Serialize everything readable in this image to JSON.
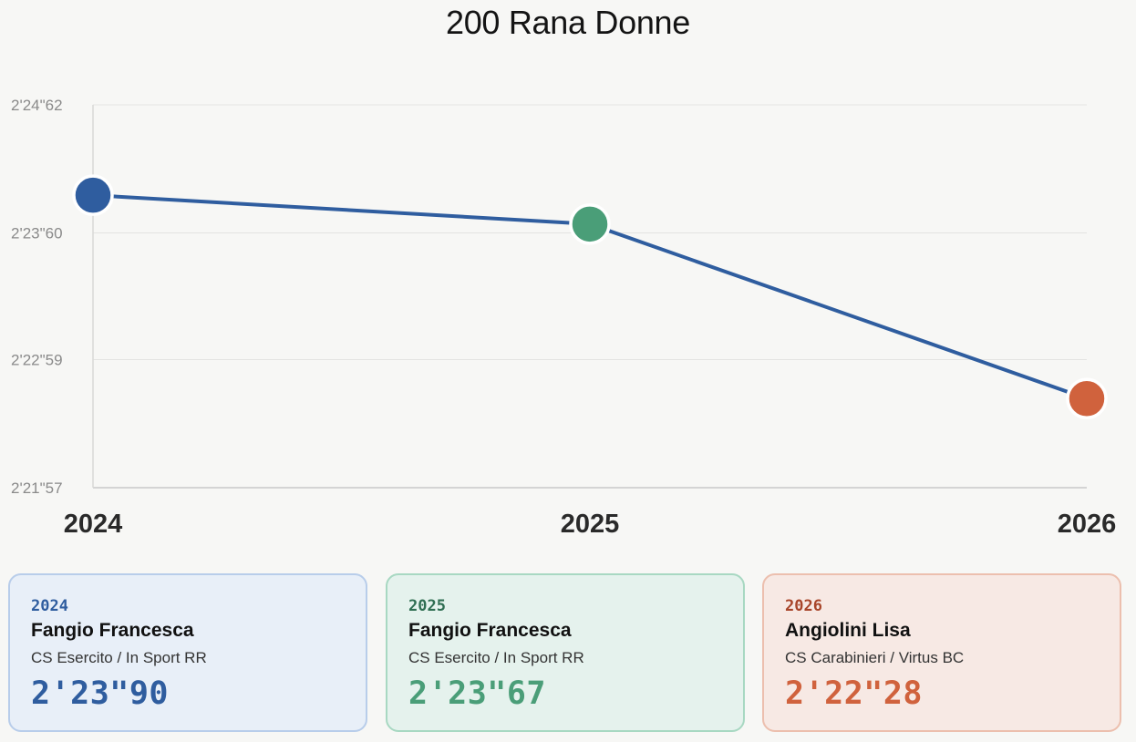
{
  "page": {
    "title": "200 Rana Donne"
  },
  "chart_data": {
    "type": "line",
    "title": "200 Rana Donne",
    "xlabel": "",
    "ylabel": "",
    "categories": [
      "2024",
      "2025",
      "2026"
    ],
    "y_tick_labels": [
      "2'24\"62",
      "2'23\"60",
      "2'22\"59",
      "2'21\"57"
    ],
    "y_ticks_seconds": [
      144.62,
      143.6,
      142.59,
      141.57
    ],
    "ylim": [
      141.57,
      144.62
    ],
    "series": [
      {
        "values": [
          143.9,
          143.67,
          142.28
        ],
        "value_labels": [
          "2'23\"90",
          "2'23\"67",
          "2'22\"28"
        ],
        "line_color": "#2f5d9f",
        "point_colors": [
          "#2f5d9f",
          "#4a9e78",
          "#d0623d"
        ]
      }
    ],
    "grid": true,
    "legend": "none"
  },
  "cards": [
    {
      "year": "2024",
      "name": "Fangio Francesca",
      "club": "CS Esercito / In Sport RR",
      "time": "2'23\"90",
      "accent": "#2f5d9f",
      "year_color": "#2f5d9f"
    },
    {
      "year": "2025",
      "name": "Fangio Francesca",
      "club": "CS Esercito / In Sport RR",
      "time": "2'23\"67",
      "accent": "#4a9e78",
      "year_color": "#2f6e52"
    },
    {
      "year": "2026",
      "name": "Angiolini Lisa",
      "club": "CS Carabinieri / Virtus BC",
      "time": "2'22\"28",
      "accent": "#d0623d",
      "year_color": "#a8452a"
    }
  ]
}
